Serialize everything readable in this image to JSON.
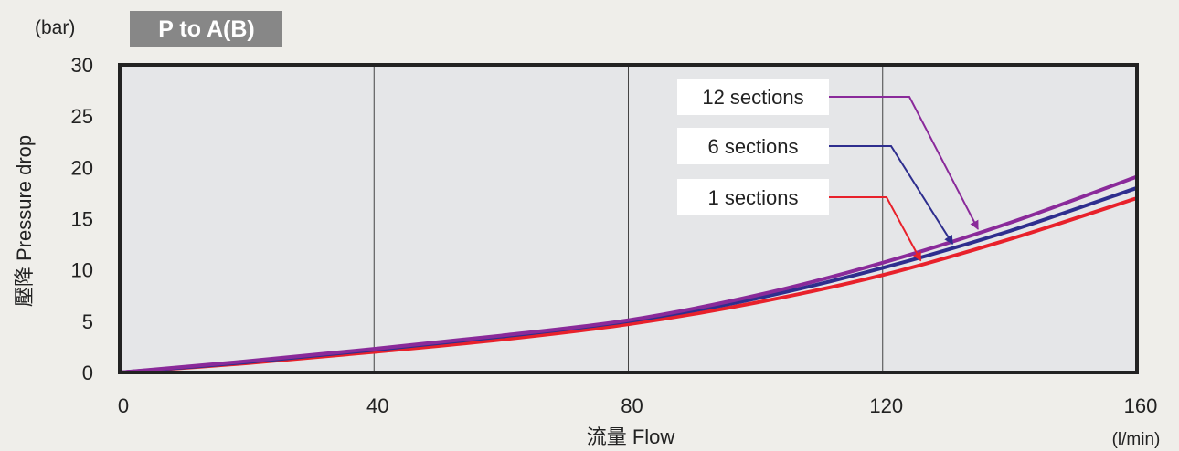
{
  "header": {
    "unit": "(bar)",
    "badge": "P to A(B)"
  },
  "axes": {
    "xlabel": "流量  Flow",
    "ylabel": "壓降  Pressure drop",
    "xunit": "(l/min)"
  },
  "colors": {
    "background": "#efeeea",
    "plot_area": "#e5e6e8",
    "badge_bg": "#878787",
    "grid": "#444444"
  },
  "chart_data": {
    "type": "line",
    "title": "P to A(B)",
    "xlabel": "流量  Flow",
    "ylabel": "壓降  Pressure drop",
    "x_unit": "(l/min)",
    "y_unit": "(bar)",
    "xlim": [
      0,
      160
    ],
    "ylim": [
      0,
      30
    ],
    "xticks": [
      0,
      40,
      80,
      120,
      160
    ],
    "yticks": [
      0,
      5,
      10,
      15,
      20,
      25,
      30
    ],
    "grid": true,
    "x": [
      0,
      20,
      40,
      60,
      80,
      100,
      120,
      140,
      160
    ],
    "series": [
      {
        "name": "1 sections",
        "color": "#e8212b",
        "values": [
          0,
          0.9,
          2.0,
          3.2,
          4.7,
          6.8,
          9.5,
          13.0,
          17.0
        ]
      },
      {
        "name": "6 sections",
        "color": "#2e2e8e",
        "values": [
          0,
          1.0,
          2.2,
          3.5,
          5.0,
          7.2,
          10.2,
          13.8,
          18.0
        ]
      },
      {
        "name": "12 sections",
        "color": "#8a2a9a",
        "values": [
          0,
          1.1,
          2.3,
          3.6,
          5.1,
          7.5,
          10.7,
          14.6,
          19.1
        ]
      }
    ],
    "annotations": [
      {
        "label": "12 sections",
        "series": "12 sections",
        "x": 135
      },
      {
        "label": "6 sections",
        "series": "6 sections",
        "x": 131
      },
      {
        "label": "1 sections",
        "series": "1 sections",
        "x": 126
      }
    ]
  }
}
